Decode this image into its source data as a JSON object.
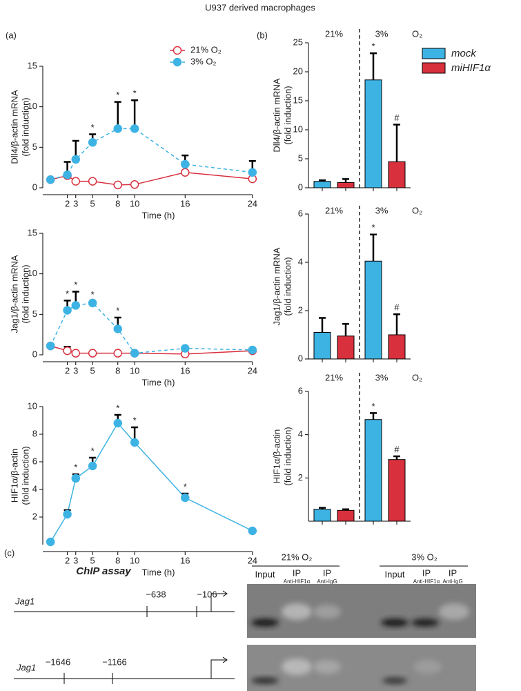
{
  "title": "U937 derived macrophages",
  "panels": [
    "(a)",
    "(b)",
    "(c)"
  ],
  "chart_data": [
    {
      "type": "line",
      "ylabel": [
        "Dll4/β-actin mRNA",
        "(fold induction)"
      ],
      "xlabel": "Time (h)",
      "x": [
        0,
        2,
        3,
        5,
        8,
        10,
        16,
        24
      ],
      "xlim": [
        -1,
        25
      ],
      "xticks": [
        2,
        3,
        5,
        8,
        10,
        16,
        24
      ],
      "ylim": [
        0,
        15
      ],
      "yticks": [
        0,
        5,
        10,
        15
      ],
      "legend": "upper right",
      "series": [
        {
          "name": "21% O₂",
          "color": "#d9303e",
          "marker": "open",
          "dash": false,
          "values": [
            1,
            1.5,
            0.8,
            0.8,
            0.35,
            0.4,
            1.9,
            1.1
          ],
          "errors": [
            null,
            null,
            null,
            null,
            null,
            null,
            null,
            null
          ],
          "significance": [
            null,
            null,
            null,
            null,
            null,
            null,
            null,
            null
          ]
        },
        {
          "name": "3% O₂",
          "color": "#3db3e4",
          "marker": "filled",
          "dash": true,
          "values": [
            1,
            1.6,
            3.5,
            5.6,
            7.3,
            7.3,
            2.9,
            1.9
          ],
          "errors": [
            null,
            1.6,
            2.3,
            1.0,
            3.3,
            3.5,
            1.1,
            1.4
          ],
          "significance": [
            null,
            null,
            null,
            "*",
            "*",
            "*",
            null,
            null
          ]
        }
      ]
    },
    {
      "type": "line",
      "ylabel": [
        "Jag1/β-actin mRNA",
        "(fold induction)"
      ],
      "xlabel": "Time (h)",
      "x": [
        0,
        2,
        3,
        5,
        8,
        10,
        16,
        24
      ],
      "xlim": [
        -1,
        25
      ],
      "xticks": [
        2,
        3,
        5,
        8,
        10,
        16,
        24
      ],
      "ylim": [
        0,
        15
      ],
      "yticks": [
        0,
        5,
        10,
        15
      ],
      "legend": false,
      "series": [
        {
          "color": "#d9303e",
          "marker": "open",
          "dash": false,
          "values": [
            1.1,
            0.5,
            0.2,
            0.2,
            0.2,
            0.2,
            0.1,
            0.5
          ],
          "errors": [
            null,
            0.5,
            null,
            null,
            null,
            null,
            null,
            null
          ],
          "significance": [
            null,
            null,
            null,
            null,
            null,
            null,
            null,
            null
          ]
        },
        {
          "color": "#3db3e4",
          "marker": "filled",
          "dash": true,
          "values": [
            1.1,
            5.5,
            6.1,
            6.4,
            3.2,
            0.2,
            0.8,
            0.6
          ],
          "errors": [
            null,
            1.2,
            1.7,
            0.2,
            1.4,
            null,
            null,
            null
          ],
          "significance": [
            null,
            "*",
            "*",
            "*",
            "*",
            null,
            null,
            null
          ]
        }
      ]
    },
    {
      "type": "line",
      "ylabel": [
        "HIF1α/β-actin",
        "(fold induction)"
      ],
      "xlabel": "Time (h)",
      "x": [
        0,
        2,
        3,
        5,
        8,
        10,
        16,
        24
      ],
      "xlim": [
        -1,
        25
      ],
      "xticks": [
        2,
        3,
        5,
        8,
        10,
        16,
        24
      ],
      "ylim": [
        0,
        10
      ],
      "yticks": [
        2,
        4,
        6,
        8,
        10
      ],
      "legend": false,
      "series": [
        {
          "color": "#3db3e4",
          "marker": "filled",
          "dash": false,
          "values": [
            0.2,
            2.2,
            4.8,
            5.7,
            8.8,
            7.4,
            3.4,
            1.0
          ],
          "errors": [
            null,
            0.3,
            0.3,
            0.6,
            0.6,
            1.1,
            0.3,
            null
          ],
          "significance": [
            null,
            null,
            "*",
            "*",
            "*",
            "*",
            "*",
            null
          ]
        }
      ]
    },
    {
      "type": "bar",
      "ylabel": [
        "Dll4/β-actin mRNA",
        "(fold induction)"
      ],
      "categories": [
        "21%",
        "3%"
      ],
      "group_label": "O₂",
      "ylim": [
        0,
        25
      ],
      "yticks": [
        0,
        5,
        10,
        15,
        20,
        25
      ],
      "legend": "right",
      "series": [
        {
          "name": "mock",
          "color": "#3db3e4",
          "values": [
            1.1,
            18.6
          ],
          "errors": [
            0.2,
            4.6
          ],
          "significance": [
            null,
            "*"
          ]
        },
        {
          "name": "miHIF1α",
          "color": "#d9303e",
          "values": [
            0.9,
            4.5
          ],
          "errors": [
            0.6,
            6.4
          ],
          "significance": [
            null,
            "#"
          ]
        }
      ]
    },
    {
      "type": "bar",
      "ylabel": [
        "Jag1/β-actin mRNA",
        "(fold induction)"
      ],
      "categories": [
        "21%",
        "3%"
      ],
      "group_label": "O₂",
      "ylim": [
        0,
        6
      ],
      "yticks": [
        0,
        2,
        4,
        6
      ],
      "legend": false,
      "series": [
        {
          "color": "#3db3e4",
          "values": [
            1.1,
            4.05
          ],
          "errors": [
            0.6,
            1.1
          ],
          "significance": [
            null,
            "*"
          ]
        },
        {
          "color": "#d9303e",
          "values": [
            0.95,
            1.0
          ],
          "errors": [
            0.5,
            0.85
          ],
          "significance": [
            null,
            "#"
          ]
        }
      ]
    },
    {
      "type": "bar",
      "ylabel": [
        "HIF1α/β-actin",
        "(fold induction)"
      ],
      "categories": [
        "21%",
        "3%"
      ],
      "group_label": "O₂",
      "ylim": [
        0,
        6
      ],
      "yticks": [
        2,
        4,
        6
      ],
      "legend": false,
      "series": [
        {
          "color": "#3db3e4",
          "values": [
            0.55,
            4.7
          ],
          "errors": [
            0.07,
            0.3
          ],
          "significance": [
            null,
            "*"
          ]
        },
        {
          "color": "#d9303e",
          "values": [
            0.5,
            2.85
          ],
          "errors": [
            0.05,
            0.15
          ],
          "significance": [
            null,
            "#"
          ]
        }
      ]
    }
  ],
  "chip": {
    "title": "ChIP assay",
    "constructs": [
      {
        "gene": "Jag1",
        "sites": [
          "−638",
          "−106"
        ]
      },
      {
        "gene": "Jag1",
        "sites": [
          "−1646",
          "−1166"
        ]
      }
    ],
    "conditions": [
      {
        "label": "21% O₂",
        "lanes": [
          {
            "name": "Input"
          },
          {
            "name": "IP",
            "target": "Anti-HIF1α"
          },
          {
            "name": "IP",
            "target": "Anti-IgG"
          }
        ]
      },
      {
        "label": "3% O₂",
        "lanes": [
          {
            "name": "Input"
          },
          {
            "name": "IP",
            "target": "Anti-HIF1α"
          },
          {
            "name": "IP",
            "target": "Anti-IgG"
          }
        ]
      }
    ]
  }
}
